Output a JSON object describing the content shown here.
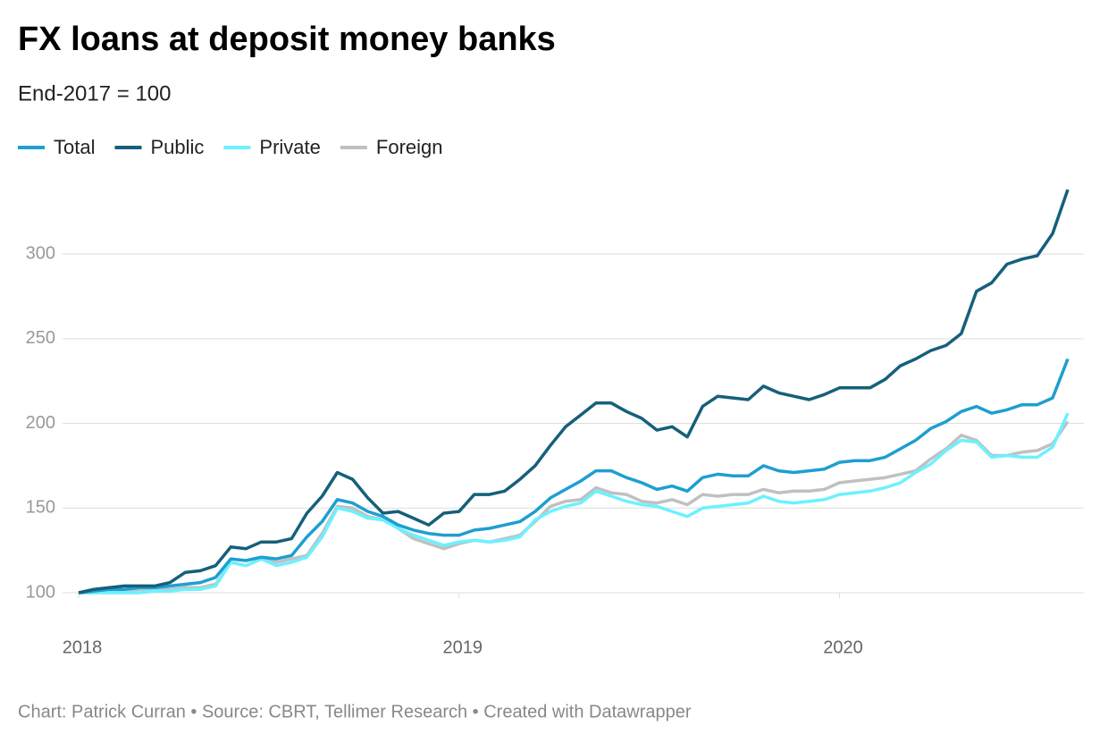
{
  "chart_data": {
    "type": "line",
    "title": "FX loans at deposit money banks",
    "subtitle": "End-2017 = 100",
    "footer": "Chart: Patrick Curran • Source: CBRT, Tellimer Research • Created with Datawrapper",
    "x": [
      2018,
      2018.04,
      2018.08,
      2018.12,
      2018.16,
      2018.2,
      2018.24,
      2018.28,
      2018.32,
      2018.36,
      2018.4,
      2018.44,
      2018.48,
      2018.52,
      2018.56,
      2018.6,
      2018.64,
      2018.68,
      2018.72,
      2018.76,
      2018.8,
      2018.84,
      2018.88,
      2018.92,
      2018.96,
      2019,
      2019.04,
      2019.08,
      2019.12,
      2019.16,
      2019.2,
      2019.24,
      2019.28,
      2019.32,
      2019.36,
      2019.4,
      2019.44,
      2019.48,
      2019.52,
      2019.56,
      2019.6,
      2019.64,
      2019.68,
      2019.72,
      2019.76,
      2019.8,
      2019.84,
      2019.88,
      2019.92,
      2019.96,
      2020,
      2020.04,
      2020.08,
      2020.12,
      2020.16,
      2020.2,
      2020.24,
      2020.28,
      2020.32,
      2020.36,
      2020.4,
      2020.44,
      2020.48,
      2020.52,
      2020.56,
      2020.6
    ],
    "series": [
      {
        "name": "Total",
        "color": "#1d9fd0",
        "values": [
          100,
          101,
          102,
          102,
          103,
          103,
          104,
          105,
          106,
          109,
          120,
          119,
          121,
          120,
          122,
          133,
          142,
          155,
          153,
          148,
          145,
          140,
          137,
          135,
          134,
          134,
          137,
          138,
          140,
          142,
          148,
          156,
          161,
          166,
          172,
          172,
          168,
          165,
          161,
          163,
          160,
          168,
          170,
          169,
          169,
          175,
          172,
          171,
          172,
          173,
          177,
          178,
          178,
          180,
          185,
          190,
          197,
          201,
          207,
          210,
          206,
          208,
          211,
          211,
          215,
          238
        ]
      },
      {
        "name": "Public",
        "color": "#15607a",
        "values": [
          100,
          102,
          103,
          104,
          104,
          104,
          106,
          112,
          113,
          116,
          127,
          126,
          130,
          130,
          132,
          147,
          157,
          171,
          167,
          156,
          147,
          148,
          144,
          140,
          147,
          148,
          158,
          158,
          160,
          167,
          175,
          187,
          198,
          205,
          212,
          212,
          207,
          203,
          196,
          198,
          192,
          210,
          216,
          215,
          214,
          222,
          218,
          216,
          214,
          217,
          221,
          221,
          221,
          226,
          234,
          238,
          243,
          246,
          253,
          278,
          283,
          294,
          297,
          299,
          312,
          338
        ]
      },
      {
        "name": "Private",
        "color": "#6cf1ff",
        "values": [
          100,
          100,
          100,
          100,
          100,
          101,
          101,
          102,
          102,
          104,
          118,
          116,
          120,
          116,
          118,
          121,
          133,
          150,
          148,
          144,
          143,
          138,
          134,
          131,
          128,
          130,
          131,
          130,
          131,
          133,
          143,
          148,
          151,
          153,
          160,
          157,
          154,
          152,
          151,
          148,
          145,
          150,
          151,
          152,
          153,
          157,
          154,
          153,
          154,
          155,
          158,
          159,
          160,
          162,
          165,
          171,
          176,
          184,
          190,
          189,
          180,
          181,
          180,
          180,
          186,
          206
        ]
      },
      {
        "name": "Foreign",
        "color": "#c0c0c0",
        "values": [
          100,
          100,
          101,
          101,
          102,
          102,
          102,
          103,
          103,
          105,
          118,
          116,
          120,
          118,
          120,
          122,
          135,
          151,
          150,
          145,
          143,
          138,
          132,
          129,
          126,
          129,
          131,
          130,
          132,
          134,
          142,
          151,
          154,
          155,
          162,
          159,
          158,
          154,
          153,
          155,
          152,
          158,
          157,
          158,
          158,
          161,
          159,
          160,
          160,
          161,
          165,
          166,
          167,
          168,
          170,
          172,
          179,
          185,
          193,
          190,
          181,
          181,
          183,
          184,
          188,
          201
        ]
      }
    ],
    "xlim": [
      2018,
      2020.6
    ],
    "xticks": [
      2018,
      2019,
      2020
    ],
    "ylim": [
      100,
      340
    ],
    "yticks": [
      100,
      150,
      200,
      250,
      300
    ],
    "grid": true
  }
}
